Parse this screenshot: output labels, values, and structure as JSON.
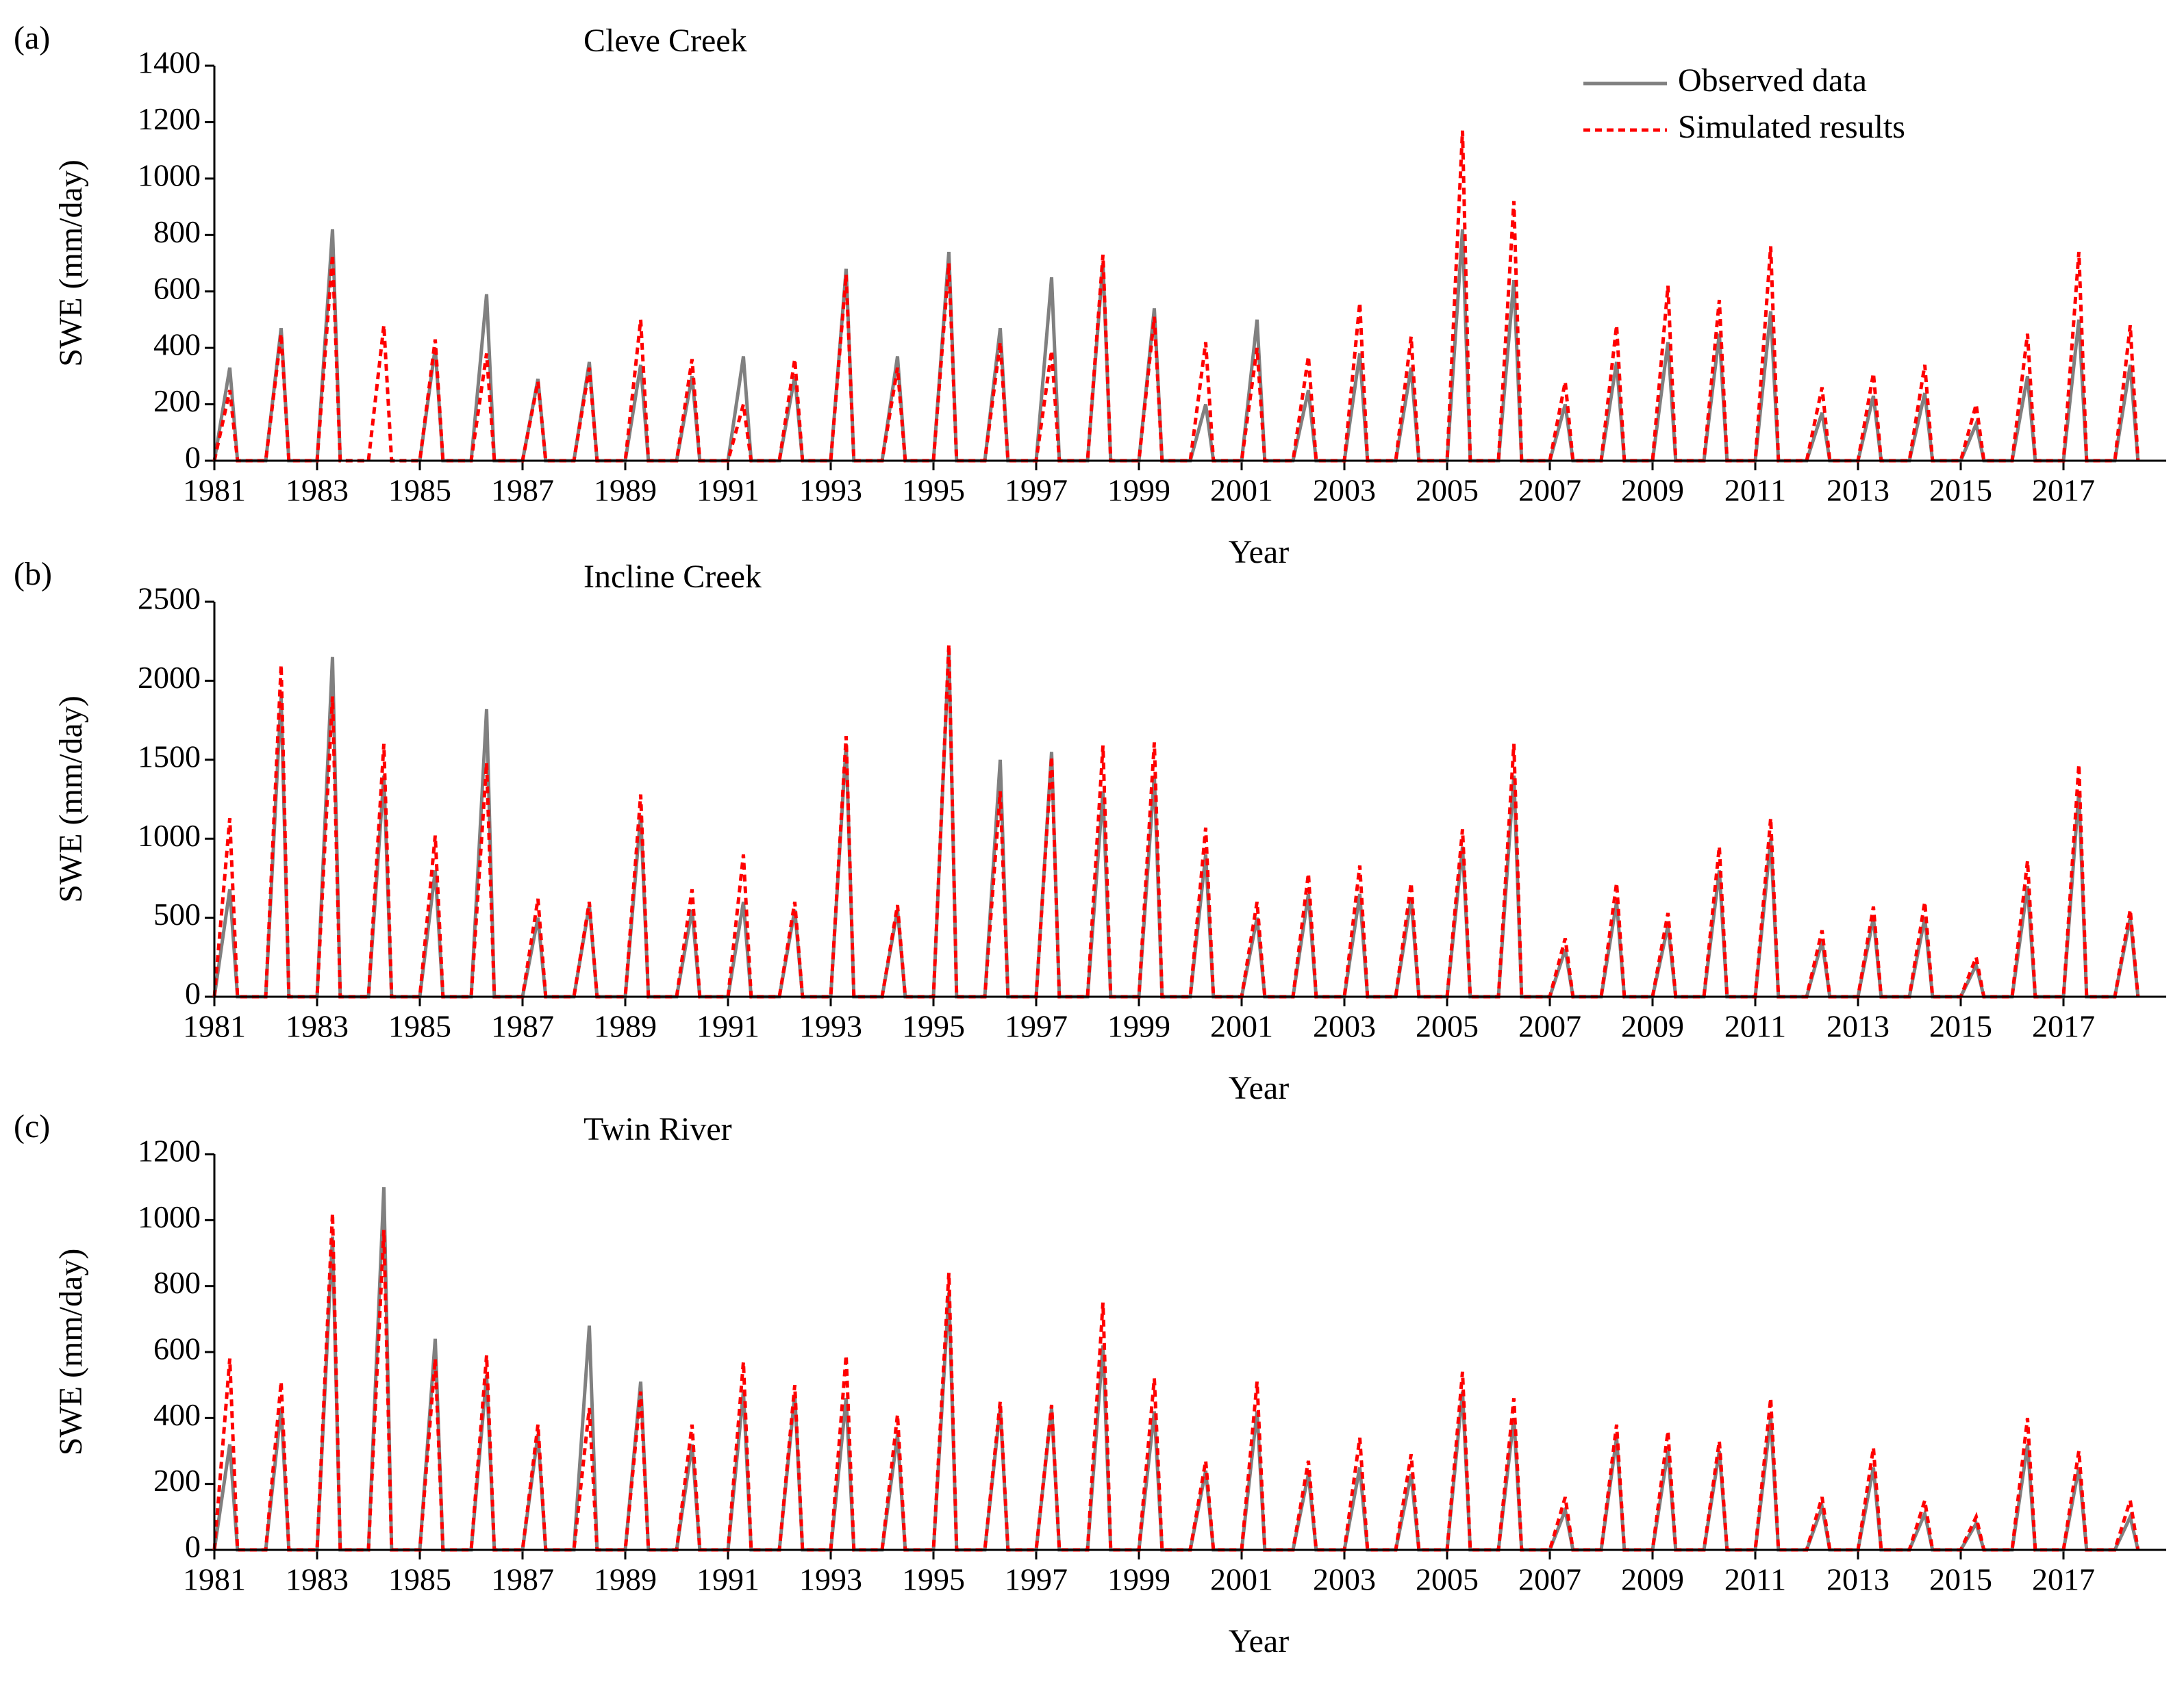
{
  "chart_data": [
    {
      "type": "line",
      "panel": "(a)",
      "title": "Cleve Creek",
      "xlabel": "Year",
      "ylabel": "SWE (mm/day)",
      "legend": "upper right",
      "xlim": [
        1981,
        2019
      ],
      "xticks": [
        1981,
        1983,
        1985,
        1987,
        1989,
        1991,
        1993,
        1995,
        1997,
        1999,
        2001,
        2003,
        2005,
        2007,
        2009,
        2011,
        2013,
        2015,
        2017
      ],
      "ylim": [
        0,
        1400
      ],
      "yticks": [
        0,
        200,
        400,
        600,
        800,
        1000,
        1200,
        1400
      ],
      "x": [
        1981,
        1981.3,
        1981.45,
        1982,
        1982.3,
        1982.45,
        1983,
        1983.3,
        1983.45,
        1984,
        1984.3,
        1984.45,
        1985,
        1985.3,
        1985.45,
        1986,
        1986.3,
        1986.45,
        1987,
        1987.3,
        1987.45,
        1988,
        1988.3,
        1988.45,
        1989,
        1989.3,
        1989.45,
        1990,
        1990.3,
        1990.45,
        1991,
        1991.3,
        1991.45,
        1992,
        1992.3,
        1992.45,
        1993,
        1993.3,
        1993.45,
        1994,
        1994.3,
        1994.45,
        1995,
        1995.3,
        1995.45,
        1996,
        1996.3,
        1996.45,
        1997,
        1997.3,
        1997.45,
        1998,
        1998.3,
        1998.45,
        1999,
        1999.3,
        1999.45,
        2000,
        2000.3,
        2000.45,
        2001,
        2001.3,
        2001.45,
        2002,
        2002.3,
        2002.45,
        2003,
        2003.3,
        2003.45,
        2004,
        2004.3,
        2004.45,
        2005,
        2005.3,
        2005.45,
        2006,
        2006.3,
        2006.45,
        2007,
        2007.3,
        2007.45,
        2008,
        2008.3,
        2008.45,
        2009,
        2009.3,
        2009.45,
        2010,
        2010.3,
        2010.45,
        2011,
        2011.3,
        2011.45,
        2012,
        2012.3,
        2012.45,
        2013,
        2013.3,
        2013.45,
        2014,
        2014.3,
        2014.45,
        2015,
        2015.3,
        2015.45,
        2016,
        2016.3,
        2016.45,
        2017,
        2017.3,
        2017.45,
        2018,
        2018.3,
        2018.45
      ],
      "series": [
        {
          "name": "Observed data",
          "color": "#808080",
          "dash": false,
          "values": [
            0,
            330,
            0,
            0,
            470,
            0,
            0,
            820,
            0,
            null,
            null,
            null,
            0,
            400,
            0,
            0,
            590,
            0,
            0,
            290,
            0,
            0,
            350,
            0,
            0,
            340,
            0,
            0,
            300,
            0,
            0,
            370,
            0,
            0,
            300,
            0,
            0,
            680,
            0,
            0,
            370,
            0,
            0,
            740,
            0,
            0,
            470,
            0,
            0,
            650,
            0,
            0,
            700,
            0,
            0,
            540,
            0,
            0,
            200,
            0,
            0,
            500,
            0,
            0,
            250,
            0,
            0,
            380,
            0,
            0,
            330,
            0,
            0,
            820,
            0,
            0,
            640,
            0,
            0,
            200,
            0,
            0,
            350,
            0,
            0,
            420,
            0,
            0,
            450,
            0,
            0,
            530,
            0,
            0,
            170,
            0,
            0,
            230,
            0,
            0,
            240,
            0,
            0,
            130,
            0,
            0,
            300,
            0,
            0,
            500,
            0,
            0,
            340,
            0
          ]
        },
        {
          "name": "Simulated results",
          "color": "#ff0000",
          "dash": true,
          "values": [
            0,
            250,
            0,
            0,
            450,
            0,
            0,
            730,
            0,
            0,
            480,
            0,
            0,
            430,
            0,
            0,
            380,
            0,
            0,
            280,
            0,
            0,
            330,
            0,
            0,
            500,
            0,
            0,
            360,
            0,
            0,
            200,
            0,
            0,
            360,
            0,
            0,
            660,
            0,
            0,
            330,
            0,
            0,
            700,
            0,
            0,
            420,
            0,
            0,
            390,
            0,
            0,
            730,
            0,
            0,
            510,
            0,
            0,
            420,
            0,
            0,
            400,
            0,
            0,
            370,
            0,
            0,
            560,
            0,
            0,
            440,
            0,
            0,
            1170,
            0,
            0,
            920,
            0,
            0,
            280,
            0,
            0,
            480,
            0,
            0,
            620,
            0,
            0,
            570,
            0,
            0,
            760,
            0,
            0,
            260,
            0,
            0,
            310,
            0,
            0,
            340,
            0,
            0,
            200,
            0,
            0,
            450,
            0,
            0,
            740,
            0,
            0,
            480,
            0
          ]
        }
      ]
    },
    {
      "type": "line",
      "panel": "(b)",
      "title": "Incline Creek",
      "xlabel": "Year",
      "ylabel": "SWE (mm/day)",
      "xlim": [
        1981,
        2019
      ],
      "xticks": [
        1981,
        1983,
        1985,
        1987,
        1989,
        1991,
        1993,
        1995,
        1997,
        1999,
        2001,
        2003,
        2005,
        2007,
        2009,
        2011,
        2013,
        2015,
        2017
      ],
      "ylim": [
        0,
        2500
      ],
      "yticks": [
        0,
        500,
        1000,
        1500,
        2000,
        2500
      ],
      "x": [
        1981,
        1981.3,
        1981.45,
        1982,
        1982.3,
        1982.45,
        1983,
        1983.3,
        1983.45,
        1984,
        1984.3,
        1984.45,
        1985,
        1985.3,
        1985.45,
        1986,
        1986.3,
        1986.45,
        1987,
        1987.3,
        1987.45,
        1988,
        1988.3,
        1988.45,
        1989,
        1989.3,
        1989.45,
        1990,
        1990.3,
        1990.45,
        1991,
        1991.3,
        1991.45,
        1992,
        1992.3,
        1992.45,
        1993,
        1993.3,
        1993.45,
        1994,
        1994.3,
        1994.45,
        1995,
        1995.3,
        1995.45,
        1996,
        1996.3,
        1996.45,
        1997,
        1997.3,
        1997.45,
        1998,
        1998.3,
        1998.45,
        1999,
        1999.3,
        1999.45,
        2000,
        2000.3,
        2000.45,
        2001,
        2001.3,
        2001.45,
        2002,
        2002.3,
        2002.45,
        2003,
        2003.3,
        2003.45,
        2004,
        2004.3,
        2004.45,
        2005,
        2005.3,
        2005.45,
        2006,
        2006.3,
        2006.45,
        2007,
        2007.3,
        2007.45,
        2008,
        2008.3,
        2008.45,
        2009,
        2009.3,
        2009.45,
        2010,
        2010.3,
        2010.45,
        2011,
        2011.3,
        2011.45,
        2012,
        2012.3,
        2012.45,
        2013,
        2013.3,
        2013.45,
        2014,
        2014.3,
        2014.45,
        2015,
        2015.3,
        2015.45,
        2016,
        2016.3,
        2016.45,
        2017,
        2017.3,
        2017.45,
        2018,
        2018.3,
        2018.45
      ],
      "series": [
        {
          "color": "#808080",
          "dash": false,
          "values": [
            0,
            680,
            0,
            0,
            1900,
            0,
            0,
            2150,
            0,
            0,
            1400,
            0,
            0,
            800,
            0,
            0,
            1820,
            0,
            0,
            500,
            0,
            0,
            580,
            0,
            0,
            1150,
            0,
            0,
            550,
            0,
            0,
            600,
            0,
            0,
            550,
            0,
            0,
            1600,
            0,
            0,
            550,
            0,
            0,
            2200,
            0,
            0,
            1500,
            0,
            0,
            1550,
            0,
            0,
            1300,
            0,
            0,
            1400,
            0,
            0,
            900,
            0,
            0,
            500,
            0,
            0,
            650,
            0,
            0,
            650,
            0,
            0,
            620,
            0,
            0,
            950,
            0,
            0,
            1400,
            0,
            0,
            300,
            0,
            0,
            600,
            0,
            0,
            450,
            0,
            0,
            800,
            0,
            0,
            1000,
            0,
            0,
            350,
            0,
            0,
            500,
            0,
            0,
            500,
            0,
            0,
            200,
            0,
            0,
            700,
            0,
            0,
            1300,
            0,
            0,
            500,
            0
          ]
        },
        {
          "color": "#ff0000",
          "dash": true,
          "values": [
            0,
            1130,
            0,
            0,
            2100,
            0,
            0,
            1900,
            0,
            0,
            1600,
            0,
            0,
            1020,
            0,
            0,
            1480,
            0,
            0,
            620,
            0,
            0,
            600,
            0,
            0,
            1280,
            0,
            0,
            680,
            0,
            0,
            900,
            0,
            0,
            600,
            0,
            0,
            1650,
            0,
            0,
            580,
            0,
            0,
            2230,
            0,
            0,
            1300,
            0,
            0,
            1520,
            0,
            0,
            1590,
            0,
            0,
            1610,
            0,
            0,
            1070,
            0,
            0,
            600,
            0,
            0,
            780,
            0,
            0,
            830,
            0,
            0,
            720,
            0,
            0,
            1060,
            0,
            0,
            1600,
            0,
            0,
            370,
            0,
            0,
            720,
            0,
            0,
            530,
            0,
            0,
            950,
            0,
            0,
            1130,
            0,
            0,
            420,
            0,
            0,
            570,
            0,
            0,
            600,
            0,
            0,
            250,
            0,
            0,
            860,
            0,
            0,
            1470,
            0,
            0,
            550,
            0
          ]
        }
      ]
    },
    {
      "type": "line",
      "panel": "(c)",
      "title": "Twin River",
      "xlabel": "Year",
      "ylabel": "SWE (mm/day)",
      "xlim": [
        1981,
        2019
      ],
      "xticks": [
        1981,
        1983,
        1985,
        1987,
        1989,
        1991,
        1993,
        1995,
        1997,
        1999,
        2001,
        2003,
        2005,
        2007,
        2009,
        2011,
        2013,
        2015,
        2017
      ],
      "ylim": [
        0,
        1200
      ],
      "yticks": [
        0,
        200,
        400,
        600,
        800,
        1000,
        1200
      ],
      "x": [
        1981,
        1981.3,
        1981.45,
        1982,
        1982.3,
        1982.45,
        1983,
        1983.3,
        1983.45,
        1984,
        1984.3,
        1984.45,
        1985,
        1985.3,
        1985.45,
        1986,
        1986.3,
        1986.45,
        1987,
        1987.3,
        1987.45,
        1988,
        1988.3,
        1988.45,
        1989,
        1989.3,
        1989.45,
        1990,
        1990.3,
        1990.45,
        1991,
        1991.3,
        1991.45,
        1992,
        1992.3,
        1992.45,
        1993,
        1993.3,
        1993.45,
        1994,
        1994.3,
        1994.45,
        1995,
        1995.3,
        1995.45,
        1996,
        1996.3,
        1996.45,
        1997,
        1997.3,
        1997.45,
        1998,
        1998.3,
        1998.45,
        1999,
        1999.3,
        1999.45,
        2000,
        2000.3,
        2000.45,
        2001,
        2001.3,
        2001.45,
        2002,
        2002.3,
        2002.45,
        2003,
        2003.3,
        2003.45,
        2004,
        2004.3,
        2004.45,
        2005,
        2005.3,
        2005.45,
        2006,
        2006.3,
        2006.45,
        2007,
        2007.3,
        2007.45,
        2008,
        2008.3,
        2008.45,
        2009,
        2009.3,
        2009.45,
        2010,
        2010.3,
        2010.45,
        2011,
        2011.3,
        2011.45,
        2012,
        2012.3,
        2012.45,
        2013,
        2013.3,
        2013.45,
        2014,
        2014.3,
        2014.45,
        2015,
        2015.3,
        2015.45,
        2016,
        2016.3,
        2016.45,
        2017,
        2017.3,
        2017.45,
        2018,
        2018.3,
        2018.45
      ],
      "series": [
        {
          "color": "#808080",
          "dash": false,
          "values": [
            0,
            320,
            0,
            0,
            430,
            0,
            0,
            950,
            0,
            0,
            1100,
            0,
            0,
            640,
            0,
            0,
            530,
            0,
            0,
            350,
            0,
            0,
            680,
            0,
            0,
            510,
            0,
            0,
            320,
            0,
            0,
            480,
            0,
            0,
            470,
            0,
            0,
            460,
            0,
            0,
            350,
            0,
            0,
            780,
            0,
            0,
            430,
            0,
            0,
            430,
            0,
            0,
            620,
            0,
            0,
            420,
            0,
            0,
            240,
            0,
            0,
            420,
            0,
            0,
            230,
            0,
            0,
            250,
            0,
            0,
            230,
            0,
            0,
            480,
            0,
            0,
            400,
            0,
            0,
            120,
            0,
            0,
            340,
            0,
            0,
            300,
            0,
            0,
            300,
            0,
            0,
            400,
            0,
            0,
            130,
            0,
            0,
            250,
            0,
            0,
            110,
            0,
            0,
            80,
            0,
            0,
            320,
            0,
            0,
            250,
            0,
            0,
            100,
            0
          ]
        },
        {
          "color": "#ff0000",
          "dash": true,
          "values": [
            0,
            580,
            0,
            0,
            510,
            0,
            0,
            1020,
            0,
            0,
            970,
            0,
            0,
            580,
            0,
            0,
            590,
            0,
            0,
            380,
            0,
            0,
            430,
            0,
            0,
            480,
            0,
            0,
            380,
            0,
            0,
            570,
            0,
            0,
            500,
            0,
            0,
            590,
            0,
            0,
            410,
            0,
            0,
            840,
            0,
            0,
            450,
            0,
            0,
            440,
            0,
            0,
            750,
            0,
            0,
            520,
            0,
            0,
            270,
            0,
            0,
            510,
            0,
            0,
            270,
            0,
            0,
            340,
            0,
            0,
            290,
            0,
            0,
            540,
            0,
            0,
            460,
            0,
            0,
            160,
            0,
            0,
            380,
            0,
            0,
            360,
            0,
            0,
            330,
            0,
            0,
            460,
            0,
            0,
            160,
            0,
            0,
            310,
            0,
            0,
            150,
            0,
            0,
            100,
            0,
            0,
            400,
            0,
            0,
            300,
            0,
            0,
            150,
            0
          ]
        }
      ]
    }
  ]
}
